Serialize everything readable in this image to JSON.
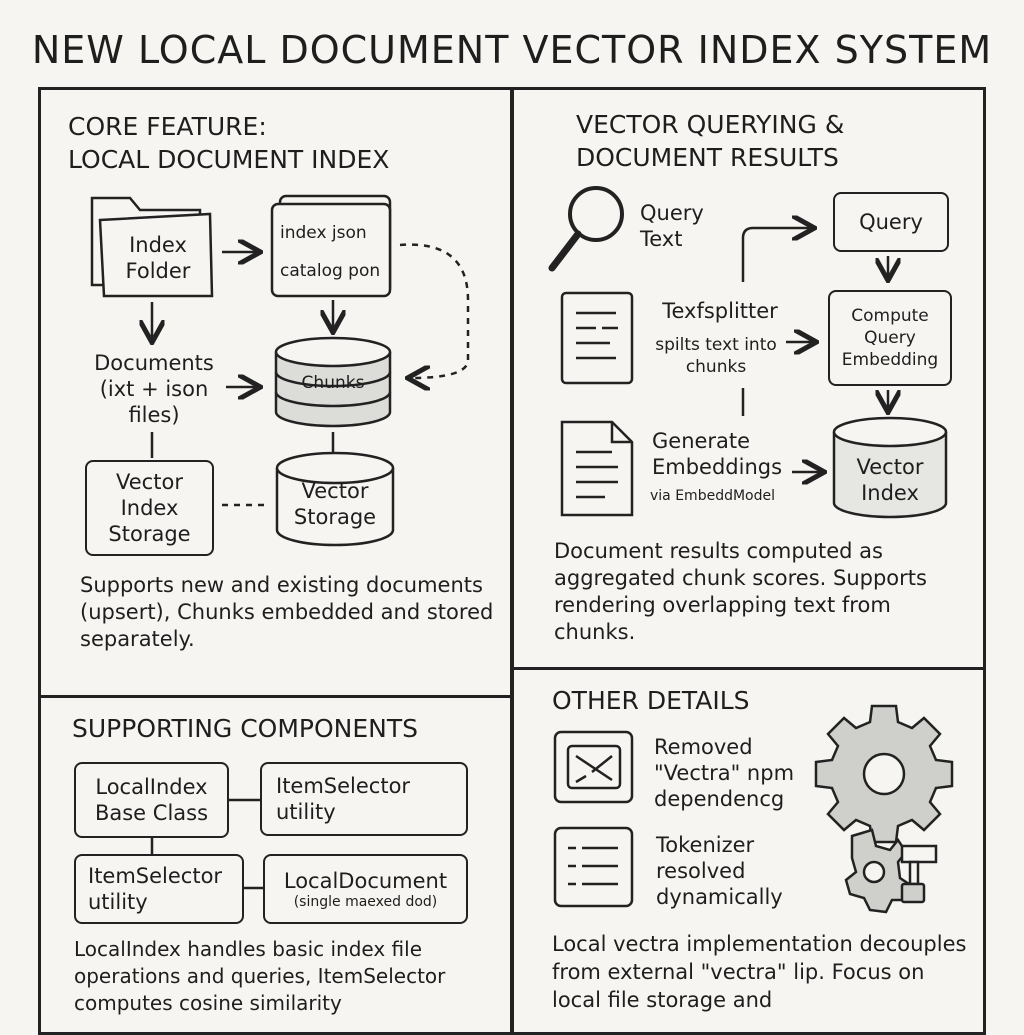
{
  "title": "NEW LOCAL DOCUMENT VECTOR INDEX SYSTEM",
  "core": {
    "heading_line1": "CORE FEATURE:",
    "heading_line2": "LOCAL DOCUMENT INDEX",
    "index_folder": "Index Folder",
    "index_json": "index json",
    "catalog_json": "catalog pon",
    "documents": "Documents (ixt + ison files)",
    "chunks": "Chunks",
    "vector_index_storage": "Vector Index Storage",
    "vector_storage": "Vector Storage",
    "note": "Supports new and existing documents (upsert), Chunks embedded and stored separately."
  },
  "query": {
    "heading_line1": "VECTOR QUERYING &",
    "heading_line2": "DOCUMENT RESULTS",
    "query_text": "Query Text",
    "query_box": "Query",
    "splitter_title": "Texfsplitter",
    "splitter_desc": "spilts text into chunks",
    "compute": "Compute Query Embedding",
    "generate": "Generate Embeddings",
    "via": "via EmbeddModel",
    "vector_index": "Vector Index",
    "note": "Document results computed as aggregated chunk scores. Supports rendering overlapping text from chunks."
  },
  "supporting": {
    "heading": "SUPPORTING COMPONENTS",
    "local_index_l1": "LocalIndex",
    "local_index_l2": "Base Class",
    "item_selector_1_l1": "ItemSelector",
    "item_selector_1_l2": "utility",
    "item_selector_2_l1": "ItemSelector",
    "item_selector_2_l2": "utility",
    "local_document_l1": "LocalDocument",
    "local_document_l2": "(single maexed dod)",
    "note": "LocalIndex handles basic index file operations and queries, ItemSelector computes cosine similarity"
  },
  "other": {
    "heading": "OTHER DETAILS",
    "removed": "Removed \"Vectra\" npm dependencg",
    "tokenizer": "Tokenizer resolved dynamically",
    "note": "Local vectra implementation decouples from external \"vectra\" lip. Focus on local file storage and"
  }
}
